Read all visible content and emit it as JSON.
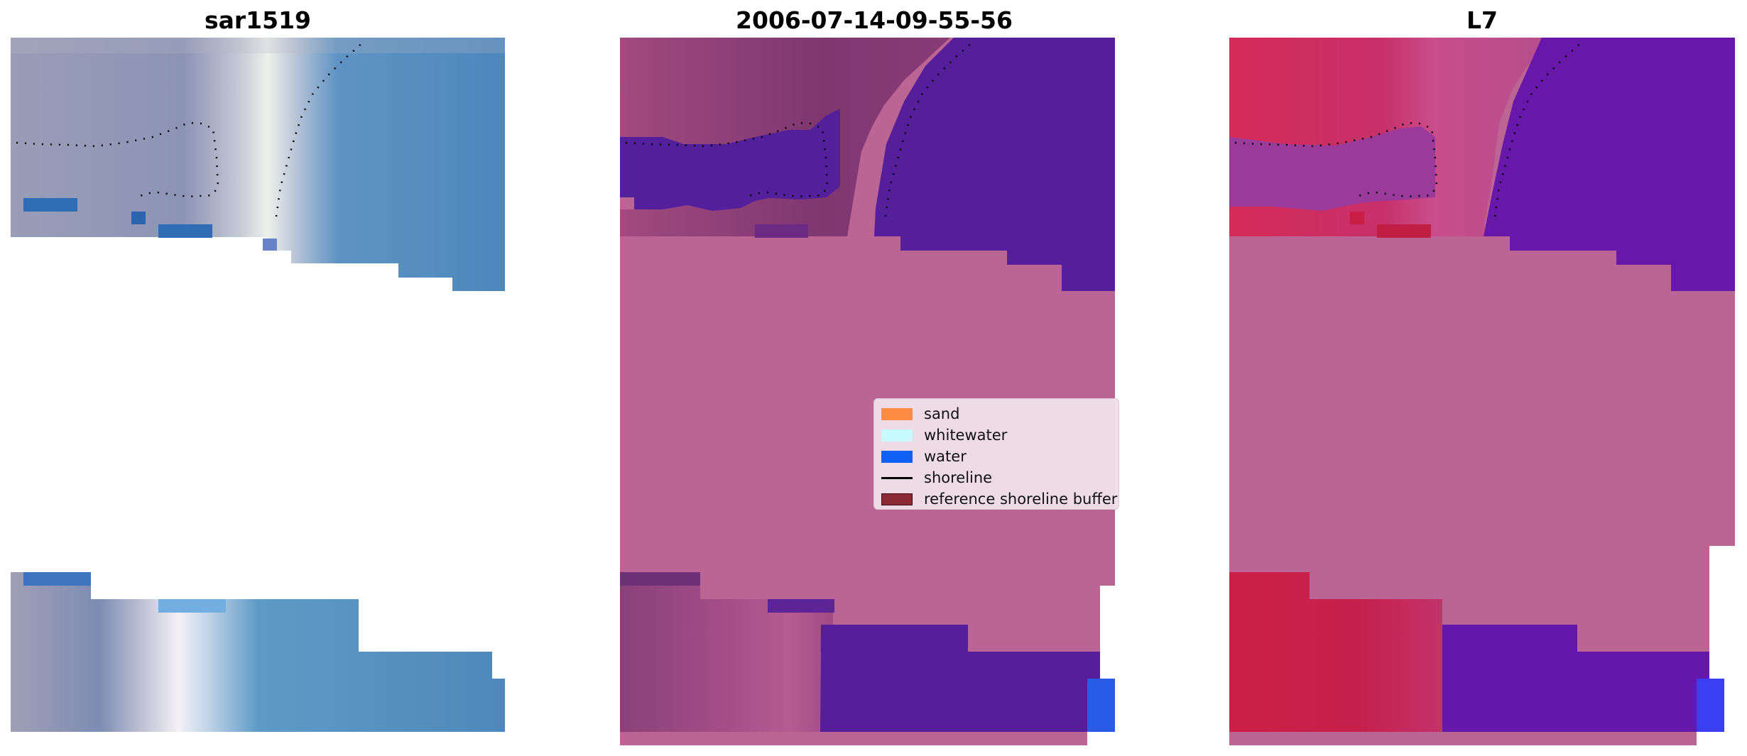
{
  "panels": [
    {
      "title": "sar1519"
    },
    {
      "title": "2006-07-14-09-55-56"
    },
    {
      "title": "L7"
    }
  ],
  "legend": {
    "items": [
      {
        "label": "sand",
        "color": "#ff8c42",
        "kind": "patch"
      },
      {
        "label": "whitewater",
        "color": "#c8fbff",
        "kind": "patch"
      },
      {
        "label": "water",
        "color": "#1060f5",
        "kind": "patch"
      },
      {
        "label": "shoreline",
        "color": "#000000",
        "kind": "line"
      },
      {
        "label": "reference shoreline buffer",
        "color": "#8b2a35",
        "kind": "patch"
      }
    ]
  },
  "colors": {
    "mask_pink": "#bb6595",
    "water_purple": "#551f9a",
    "class_red": "#c2204a",
    "class_violet": "#6718a8",
    "rgb_blue": "#4e86b8",
    "rgb_grey": "#8a93b0"
  }
}
